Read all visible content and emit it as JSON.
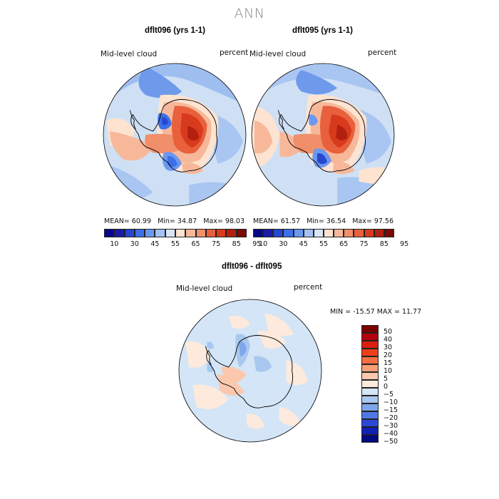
{
  "main_title": "ANN",
  "panels": [
    {
      "title": "dflt096 (yrs 1-1)",
      "variable": "Mid-level cloud",
      "units": "percent",
      "stats": {
        "mean_label": "MEAN=",
        "mean": "60.99",
        "min_label": "Min=",
        "min": "34.87",
        "max_label": "Max=",
        "max": "98.03"
      }
    },
    {
      "title": "dflt095 (yrs 1-1)",
      "variable": "Mid-level cloud",
      "units": "percent",
      "stats": {
        "mean_label": "MEAN=",
        "mean": "61.57",
        "min_label": "Min=",
        "min": "36.54",
        "max_label": "Max=",
        "max": "97.56"
      }
    }
  ],
  "diff_panel": {
    "title": "dflt096 - dflt095",
    "variable": "Mid-level cloud",
    "units": "percent",
    "minmax": "MIN = -15.57 MAX =  11.77"
  },
  "colorbar_abs": {
    "colors": [
      "#07078a",
      "#1b1ba8",
      "#2747d0",
      "#3d6fe8",
      "#6b98f0",
      "#a3c2f2",
      "#d6e6f6",
      "#fde3d0",
      "#f7b89a",
      "#f08f6a",
      "#e8603c",
      "#d83a1d",
      "#b3200f",
      "#7a0a04"
    ],
    "labels": [
      "10",
      "30",
      "45",
      "55",
      "65",
      "75",
      "85",
      "95"
    ]
  },
  "colorbar_diff": {
    "colors": [
      "#7a0000",
      "#b3000c",
      "#d81f10",
      "#ee4018",
      "#f76e40",
      "#f99e76",
      "#fbc8ae",
      "#fdeadd",
      "#d3e5f6",
      "#a9c8f0",
      "#7ea6ea",
      "#4f78e4",
      "#2a48d6",
      "#1020b6",
      "#020a80"
    ],
    "labels": [
      "50",
      "40",
      "30",
      "20",
      "15",
      "10",
      "5",
      "0",
      "−5",
      "−10",
      "−15",
      "−20",
      "−30",
      "−40",
      "−50"
    ]
  }
}
